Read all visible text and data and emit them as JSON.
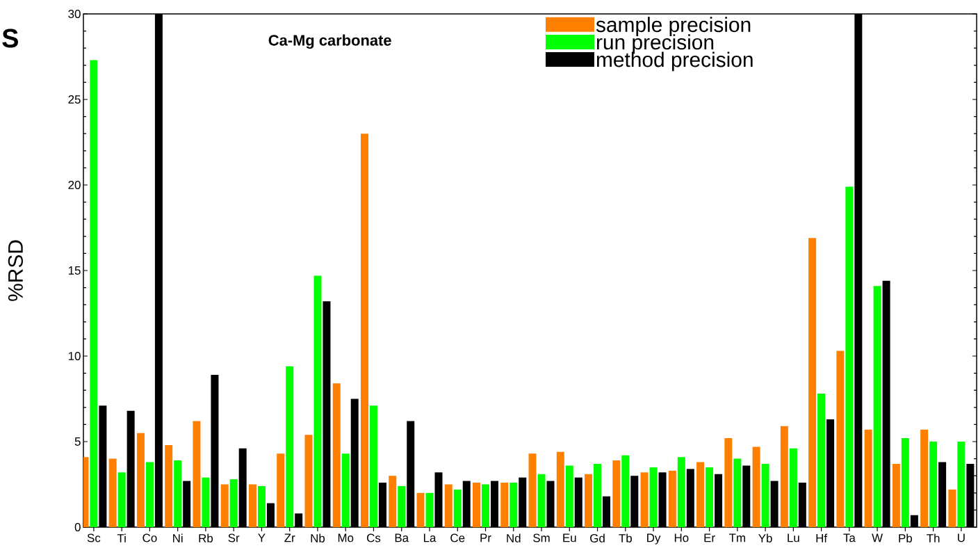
{
  "chart_data": {
    "type": "bar",
    "title": "Ca-Mg carbonate",
    "ylabel": "%RSD",
    "annotations": [
      "S"
    ],
    "categories": [
      "Sc",
      "Ti",
      "Co",
      "Ni",
      "Rb",
      "Sr",
      "Y",
      "Zr",
      "Nb",
      "Mo",
      "Cs",
      "Ba",
      "La",
      "Ce",
      "Pr",
      "Nd",
      "Sm",
      "Eu",
      "Gd",
      "Tb",
      "Dy",
      "Ho",
      "Er",
      "Tm",
      "Yb",
      "Lu",
      "Hf",
      "Ta",
      "W",
      "Pb",
      "Th",
      "U"
    ],
    "series": [
      {
        "name": "sample precision",
        "color": "#ff8000",
        "values": [
          4.1,
          4.0,
          5.5,
          4.8,
          6.2,
          2.5,
          2.5,
          4.3,
          5.4,
          8.4,
          23.0,
          3.0,
          2.0,
          2.5,
          2.6,
          2.6,
          4.3,
          4.4,
          3.1,
          3.9,
          3.2,
          3.3,
          3.8,
          5.2,
          4.7,
          5.9,
          16.9,
          10.3,
          5.7,
          3.7,
          5.7,
          2.2
        ]
      },
      {
        "name": "run precision",
        "color": "#00ff00",
        "values": [
          27.3,
          3.2,
          3.8,
          3.9,
          2.9,
          2.8,
          2.4,
          9.4,
          14.7,
          4.3,
          7.1,
          2.4,
          2.0,
          2.2,
          2.5,
          2.6,
          3.1,
          3.6,
          3.7,
          4.2,
          3.5,
          4.1,
          3.5,
          4.0,
          3.7,
          4.6,
          7.8,
          19.9,
          14.1,
          5.2,
          5.0,
          5.0
        ]
      },
      {
        "name": "method precision",
        "color": "#000000",
        "values": [
          7.1,
          6.8,
          30,
          2.7,
          8.9,
          4.6,
          1.4,
          0.8,
          13.2,
          7.5,
          2.6,
          6.2,
          3.2,
          2.7,
          2.7,
          2.9,
          2.7,
          2.9,
          1.8,
          3.0,
          3.2,
          3.4,
          3.1,
          3.6,
          2.7,
          2.6,
          6.3,
          30,
          14.4,
          0.7,
          3.8,
          3.7
        ]
      }
    ],
    "ylim": [
      0,
      30
    ],
    "yticks": [
      0,
      5,
      10,
      15,
      20,
      25,
      30
    ],
    "legend": "top right"
  }
}
